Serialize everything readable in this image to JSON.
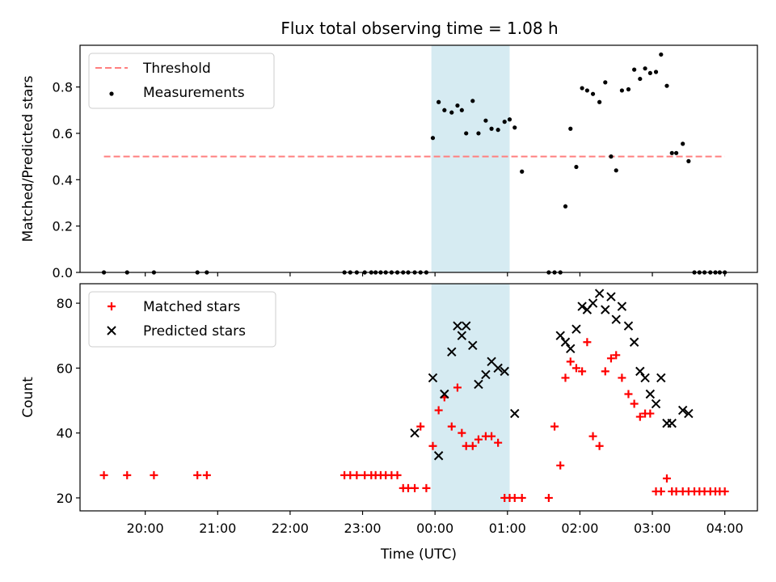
{
  "figure_title": "Flux total observing time = 1.08 h",
  "chart_data": [
    {
      "type": "scatter",
      "title": "Flux total observing time = 1.08 h",
      "xlabel": "",
      "ylabel": "Matched/Predicted stars",
      "x_unit": "hours relative to 00:00 UTC",
      "xlim": [
        -4.9,
        4.45
      ],
      "ylim": [
        0.0,
        0.98
      ],
      "yticks": [
        0.0,
        0.2,
        0.4,
        0.6,
        0.8
      ],
      "ytick_labels": [
        "0.0",
        "0.2",
        "0.4",
        "0.6",
        "0.8"
      ],
      "grid": false,
      "legend_position": "upper-left",
      "highlight_span": {
        "x_start": -0.05,
        "x_end": 1.03,
        "color": "#add8e6"
      },
      "threshold": {
        "name": "Threshold",
        "y": 0.5,
        "x_start": -4.57,
        "x_end": 4.0,
        "color": "#ff7f7f",
        "style": "dashed"
      },
      "series": [
        {
          "name": "Measurements",
          "marker": "dot",
          "color": "#000000",
          "x": [
            -4.57,
            -4.25,
            -3.88,
            -3.28,
            -3.15,
            -1.25,
            -1.17,
            -1.08,
            -0.97,
            -0.88,
            -0.82,
            -0.75,
            -0.68,
            -0.6,
            -0.52,
            -0.44,
            -0.37,
            -0.28,
            -0.2,
            -0.12,
            -0.03,
            0.05,
            0.13,
            0.23,
            0.31,
            0.37,
            0.43,
            0.52,
            0.6,
            0.7,
            0.78,
            0.87,
            0.96,
            1.03,
            1.1,
            1.2,
            1.57,
            1.65,
            1.73,
            1.8,
            1.87,
            1.95,
            2.03,
            2.1,
            2.18,
            2.27,
            2.35,
            2.43,
            2.5,
            2.58,
            2.67,
            2.75,
            2.83,
            2.9,
            2.97,
            3.05,
            3.12,
            3.2,
            3.27,
            3.33,
            3.42,
            3.5,
            3.58,
            3.65,
            3.72,
            3.8,
            3.87,
            3.93,
            4.0
          ],
          "y": [
            0,
            0,
            0,
            0,
            0,
            0,
            0,
            0,
            0,
            0,
            0,
            0,
            0,
            0,
            0,
            0,
            0,
            0,
            0,
            0,
            0.58,
            0.735,
            0.7,
            0.69,
            0.72,
            0.7,
            0.6,
            0.74,
            0.6,
            0.655,
            0.62,
            0.615,
            0.65,
            0.66,
            0.625,
            0.435,
            0,
            0,
            0,
            0.285,
            0.62,
            0.455,
            0.795,
            0.785,
            0.77,
            0.735,
            0.82,
            0.5,
            0.44,
            0.785,
            0.79,
            0.875,
            0.835,
            0.88,
            0.86,
            0.865,
            0.94,
            0.805,
            0.515,
            0.515,
            0.555,
            0.48,
            0,
            0,
            0,
            0,
            0,
            0,
            0
          ]
        }
      ]
    },
    {
      "type": "scatter",
      "title": "",
      "xlabel": "Time (UTC)",
      "ylabel": "Count",
      "x_unit": "hours relative to 00:00 UTC",
      "xlim": [
        -4.9,
        4.45
      ],
      "ylim": [
        16,
        86
      ],
      "xticks": [
        -4,
        -3,
        -2,
        -1,
        0,
        1,
        2,
        3,
        4
      ],
      "xtick_labels": [
        "20:00",
        "21:00",
        "22:00",
        "23:00",
        "00:00",
        "01:00",
        "02:00",
        "03:00",
        "04:00"
      ],
      "yticks": [
        20,
        40,
        60,
        80
      ],
      "ytick_labels": [
        "20",
        "40",
        "60",
        "80"
      ],
      "grid": false,
      "legend_position": "upper-left",
      "highlight_span": {
        "x_start": -0.05,
        "x_end": 1.03,
        "color": "#add8e6"
      },
      "series": [
        {
          "name": "Matched stars",
          "marker": "plus",
          "color": "#ff0000",
          "x": [
            -4.57,
            -4.25,
            -3.88,
            -3.28,
            -3.15,
            -1.25,
            -1.17,
            -1.08,
            -0.97,
            -0.88,
            -0.82,
            -0.75,
            -0.68,
            -0.6,
            -0.52,
            -0.44,
            -0.37,
            -0.28,
            -0.2,
            -0.12,
            -0.03,
            0.05,
            0.13,
            0.23,
            0.31,
            0.37,
            0.43,
            0.52,
            0.6,
            0.7,
            0.78,
            0.87,
            0.96,
            1.03,
            1.1,
            1.2,
            1.57,
            1.65,
            1.73,
            1.8,
            1.87,
            1.95,
            2.03,
            2.1,
            2.18,
            2.27,
            2.35,
            2.43,
            2.5,
            2.58,
            2.67,
            2.75,
            2.83,
            2.9,
            2.97,
            3.05,
            3.12,
            3.2,
            3.27,
            3.33,
            3.42,
            3.5,
            3.58,
            3.65,
            3.72,
            3.8,
            3.87,
            3.93,
            4.0
          ],
          "y": [
            27,
            27,
            27,
            27,
            27,
            27,
            27,
            27,
            27,
            27,
            27,
            27,
            27,
            27,
            27,
            23,
            23,
            23,
            42,
            23,
            36,
            47,
            51,
            42,
            54,
            40,
            36,
            36,
            38,
            39,
            39,
            37,
            20,
            20,
            20,
            20,
            20,
            42,
            30,
            57,
            62,
            60,
            59,
            68,
            39,
            36,
            59,
            63,
            64,
            57,
            52,
            49,
            45,
            46,
            46,
            22,
            22,
            26,
            22,
            22,
            22,
            22,
            22,
            22,
            22,
            22,
            22,
            22,
            22
          ]
        },
        {
          "name": "Predicted stars",
          "marker": "x",
          "color": "#000000",
          "x": [
            -0.28,
            -0.03,
            0.05,
            0.13,
            0.23,
            0.31,
            0.37,
            0.43,
            0.52,
            0.6,
            0.7,
            0.78,
            0.87,
            0.96,
            1.1,
            1.73,
            1.8,
            1.87,
            1.95,
            2.03,
            2.1,
            2.18,
            2.27,
            2.35,
            2.43,
            2.5,
            2.58,
            2.67,
            2.75,
            2.83,
            2.9,
            2.97,
            3.05,
            3.12,
            3.2,
            3.27,
            3.42,
            3.5
          ],
          "y": [
            40,
            57,
            33,
            52,
            65,
            73,
            70,
            73,
            67,
            55,
            58,
            62,
            60,
            59,
            46,
            70,
            68,
            66,
            72,
            79,
            78,
            80,
            83,
            78,
            82,
            75,
            79,
            73,
            68,
            59,
            57,
            52,
            49,
            57,
            43,
            43,
            47,
            46
          ]
        }
      ]
    }
  ]
}
